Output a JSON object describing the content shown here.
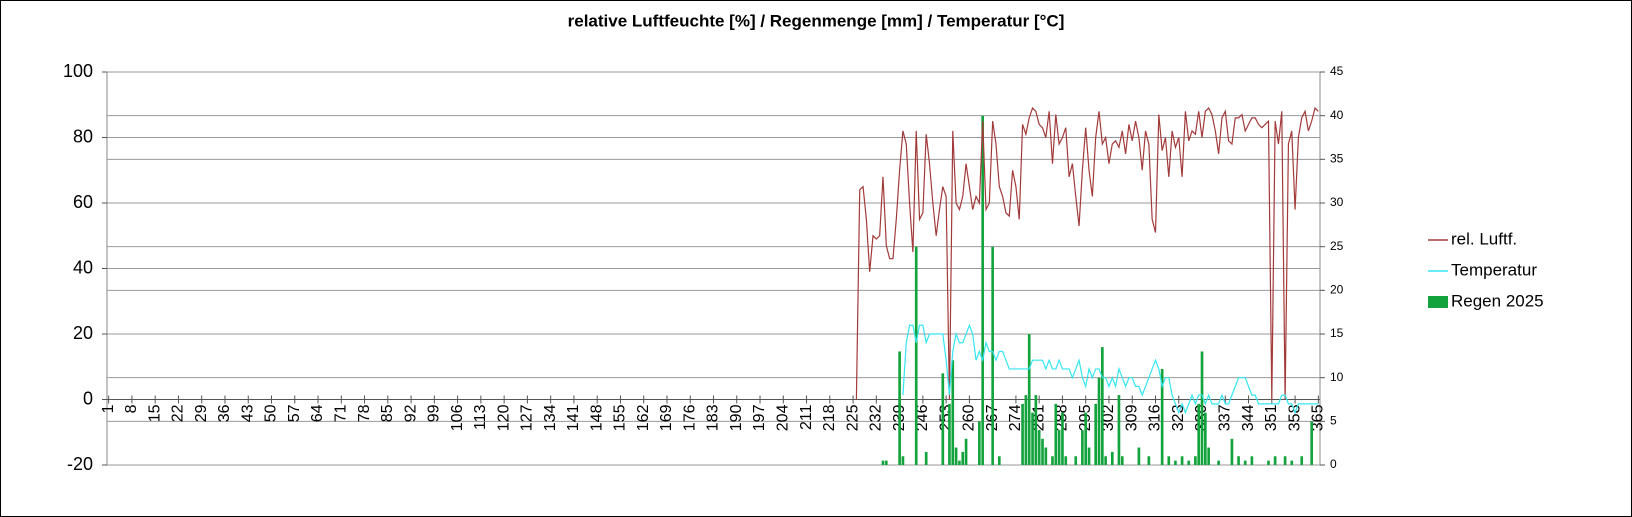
{
  "chart_data": {
    "type": "combo",
    "title": "relative Luftfeuchte [%] / Regenmenge [mm] / Temperatur [°C]",
    "x": [
      226,
      227,
      228,
      229,
      230,
      231,
      232,
      233,
      234,
      235,
      236,
      237,
      238,
      239,
      240,
      241,
      242,
      243,
      244,
      245,
      246,
      247,
      248,
      249,
      250,
      251,
      252,
      253,
      254,
      255,
      256,
      257,
      258,
      259,
      260,
      261,
      262,
      263,
      264,
      265,
      266,
      267,
      268,
      269,
      270,
      271,
      272,
      273,
      274,
      275,
      276,
      277,
      278,
      279,
      280,
      281,
      282,
      283,
      284,
      285,
      286,
      287,
      288,
      289,
      290,
      291,
      292,
      293,
      294,
      295,
      296,
      297,
      298,
      299,
      300,
      301,
      302,
      303,
      304,
      305,
      306,
      307,
      308,
      309,
      310,
      311,
      312,
      313,
      314,
      315,
      316,
      317,
      318,
      319,
      320,
      321,
      322,
      323,
      324,
      325,
      326,
      327,
      328,
      329,
      330,
      331,
      332,
      333,
      334,
      335,
      336,
      337,
      338,
      339,
      340,
      341,
      342,
      343,
      344,
      345,
      346,
      347,
      348,
      349,
      350,
      351,
      352,
      353,
      354,
      355,
      356,
      357,
      358,
      359,
      360,
      361,
      362,
      363,
      364,
      365
    ],
    "series": [
      {
        "name": "rel. Luftf.",
        "kind": "line",
        "axis": "y",
        "color": "#a33a3a",
        "values": [
          0,
          64,
          65,
          55,
          39,
          50,
          49,
          50,
          68,
          47,
          43,
          43,
          55,
          70,
          82,
          78,
          60,
          45,
          82,
          55,
          57,
          81,
          72,
          60,
          50,
          58,
          65,
          62,
          0,
          82,
          60,
          58,
          62,
          72,
          65,
          58,
          62,
          60,
          85,
          58,
          60,
          85,
          78,
          65,
          62,
          57,
          56,
          70,
          65,
          55,
          84,
          81,
          86,
          89,
          88,
          84,
          83,
          80,
          88,
          72,
          87,
          78,
          80,
          83,
          68,
          72,
          62,
          53,
          70,
          83,
          70,
          62,
          80,
          88,
          78,
          80,
          72,
          78,
          79,
          77,
          82,
          75,
          84,
          79,
          85,
          80,
          70,
          82,
          78,
          55,
          51,
          87,
          76,
          80,
          68,
          82,
          77,
          80,
          68,
          88,
          79,
          82,
          81,
          88,
          80,
          88,
          89,
          87,
          82,
          75,
          86,
          88,
          79,
          78,
          86,
          86,
          87,
          82,
          84,
          86,
          86,
          84,
          83,
          84,
          85,
          0,
          85,
          78,
          88,
          0,
          78,
          82,
          58,
          80,
          86,
          88,
          82,
          85,
          89,
          88
        ]
      },
      {
        "name": "Temperatur",
        "kind": "line",
        "axis": "y2",
        "color": "#33e6f2",
        "values": [
          null,
          null,
          null,
          null,
          null,
          null,
          null,
          null,
          null,
          null,
          null,
          null,
          null,
          null,
          8,
          14,
          16,
          16,
          14,
          16,
          16,
          14,
          15,
          15,
          15,
          15,
          15,
          12,
          8,
          13,
          15,
          14,
          14,
          15,
          16,
          15,
          12,
          13,
          12,
          14,
          13,
          13,
          12,
          13,
          13,
          12,
          11,
          11,
          11,
          11,
          11,
          11,
          11,
          12,
          12,
          12,
          12,
          11,
          12,
          11,
          11,
          12,
          11,
          11,
          11,
          10,
          11,
          12,
          10,
          9,
          11,
          10,
          11,
          11,
          10,
          10,
          9,
          10,
          9,
          11,
          10,
          9,
          10,
          10,
          9,
          9,
          8,
          9,
          10,
          11,
          12,
          11,
          9,
          10,
          10,
          8,
          7,
          6,
          7,
          6,
          7,
          8,
          7,
          8,
          8,
          7,
          8,
          7,
          7,
          7,
          8,
          7,
          7,
          8,
          9,
          10,
          10,
          10,
          9,
          8,
          8,
          7,
          7,
          7,
          7,
          7,
          7,
          7,
          8,
          8,
          7,
          7,
          6,
          7,
          7,
          7,
          7,
          7,
          7,
          7
        ]
      },
      {
        "name": "Regen 2025",
        "kind": "bar",
        "axis": "y2",
        "color": "#13a33c",
        "values": [
          0,
          0,
          0,
          0,
          0,
          0,
          0,
          0,
          0.5,
          0.5,
          0,
          0,
          0,
          13,
          1,
          0,
          0,
          0,
          25,
          0,
          0,
          1.5,
          0,
          0,
          0,
          0,
          10.5,
          0,
          7,
          12,
          2,
          0.5,
          1.5,
          3,
          0,
          0,
          0,
          5,
          40,
          0,
          0,
          25,
          0,
          1,
          0,
          0,
          0,
          0,
          0,
          0,
          7,
          8,
          15,
          6,
          8,
          4,
          3,
          2,
          0,
          1,
          7,
          4,
          6,
          1,
          0,
          0,
          1,
          0,
          4,
          6,
          2,
          0,
          7,
          10,
          13.5,
          1,
          0,
          1.5,
          0,
          8,
          1,
          0,
          0,
          0,
          0,
          2,
          0,
          0,
          1,
          0,
          0,
          0,
          11,
          0,
          1,
          0,
          0.5,
          0,
          1,
          0,
          0.5,
          0,
          1,
          7,
          13,
          6,
          2,
          0,
          0,
          0.5,
          0,
          0,
          0,
          3,
          0,
          1,
          0,
          0.5,
          0,
          1,
          0,
          0,
          0,
          0,
          0.5,
          0,
          1,
          0,
          0,
          1,
          0,
          0.5,
          0,
          0,
          1,
          0,
          0,
          5,
          0,
          0
        ]
      }
    ],
    "xlim": [
      0.5,
      365.5
    ],
    "xticks": [
      1,
      8,
      15,
      22,
      29,
      36,
      43,
      50,
      57,
      64,
      71,
      78,
      85,
      92,
      99,
      106,
      113,
      120,
      127,
      134,
      141,
      148,
      155,
      162,
      169,
      176,
      183,
      190,
      197,
      204,
      211,
      218,
      225,
      232,
      239,
      246,
      253,
      260,
      267,
      274,
      281,
      288,
      295,
      302,
      309,
      316,
      323,
      330,
      337,
      344,
      351,
      358,
      365
    ],
    "ylim": [
      -20,
      100
    ],
    "yticks": [
      -20,
      0,
      20,
      40,
      60,
      80,
      100
    ],
    "y2lim": [
      0,
      45
    ],
    "y2ticks": [
      0,
      5,
      10,
      15,
      20,
      25,
      30,
      35,
      40,
      45
    ],
    "grid": true,
    "legend": "right"
  }
}
